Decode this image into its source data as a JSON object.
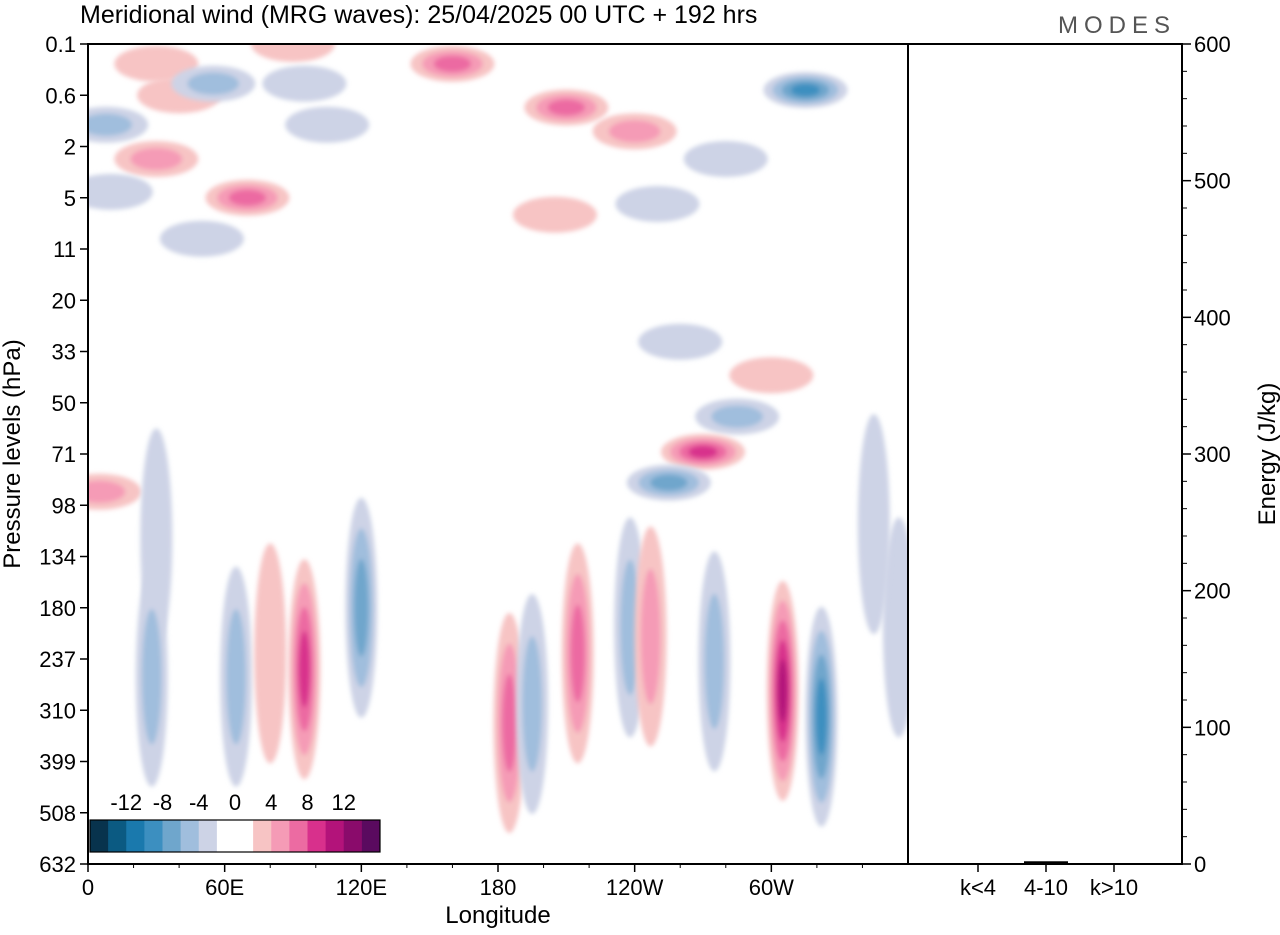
{
  "chart_data": {
    "type": "heatmap",
    "title": "Meridional wind (MRG waves):  25/04/2025  00 UTC  + 192 hrs",
    "logo": "MODES",
    "xlabel": "Longitude",
    "ylabel": "Pressure levels (hPa)",
    "x_ticks": [
      "0",
      "60E",
      "120E",
      "180",
      "120W",
      "60W"
    ],
    "x_tick_values": [
      0,
      60,
      120,
      180,
      240,
      300
    ],
    "x_range": [
      0,
      360
    ],
    "y_ticks": [
      "0.1",
      "0.6",
      "2",
      "5",
      "11",
      "20",
      "33",
      "50",
      "71",
      "98",
      "134",
      "180",
      "237",
      "310",
      "399",
      "508",
      "632"
    ],
    "colorbar": {
      "labels": [
        "-12",
        "-8",
        "-4",
        "0",
        "4",
        "8",
        "12"
      ],
      "levels": [
        -14,
        -12,
        -10,
        -8,
        -6,
        -4,
        -2,
        0,
        2,
        4,
        6,
        8,
        10,
        12,
        14
      ],
      "colors": [
        "#08334d",
        "#0b5a82",
        "#1a79ad",
        "#3c8fc0",
        "#6fa6cc",
        "#a0bedd",
        "#cdd3e6",
        "#ffffff",
        "#ffffff",
        "#f7c4c4",
        "#f59bb6",
        "#ec6ba2",
        "#d8308c",
        "#b3137a",
        "#8a0b6b",
        "#5a0a5f"
      ]
    },
    "energy_panel": {
      "ylabel": "Energy (J/kg)",
      "y_ticks": [
        "0",
        "100",
        "200",
        "300",
        "400",
        "500",
        "600"
      ],
      "ylim": [
        0,
        600
      ],
      "categories": [
        "k<4",
        "4-10",
        "k>10"
      ],
      "values": [
        0.5,
        2,
        0.5
      ]
    },
    "blobs": [
      {
        "lon": 8,
        "lev": 1.2,
        "value": -6
      },
      {
        "lon": 30,
        "lev": 0.2,
        "value": 4
      },
      {
        "lon": 40,
        "lev": 0.6,
        "value": 4
      },
      {
        "lon": 55,
        "lev": 0.4,
        "value": -6
      },
      {
        "lon": 90,
        "lev": 0.1,
        "value": 4
      },
      {
        "lon": 95,
        "lev": 0.4,
        "value": -4
      },
      {
        "lon": 105,
        "lev": 1.2,
        "value": -4
      },
      {
        "lon": 160,
        "lev": 0.2,
        "value": 8
      },
      {
        "lon": 210,
        "lev": 0.8,
        "value": 8
      },
      {
        "lon": 240,
        "lev": 1.4,
        "value": 6
      },
      {
        "lon": 315,
        "lev": 0.5,
        "value": -10
      },
      {
        "lon": 280,
        "lev": 2.5,
        "value": -4
      },
      {
        "lon": 30,
        "lev": 2.5,
        "value": 6
      },
      {
        "lon": 70,
        "lev": 5,
        "value": 8
      },
      {
        "lon": 50,
        "lev": 9.4,
        "value": -4
      },
      {
        "lon": 205,
        "lev": 6.5,
        "value": 4
      },
      {
        "lon": 250,
        "lev": 5.5,
        "value": -4
      },
      {
        "lon": 10,
        "lev": 4.5,
        "value": -4
      },
      {
        "lon": 260,
        "lev": 30,
        "value": -4
      },
      {
        "lon": 285,
        "lev": 55,
        "value": -6
      },
      {
        "lon": 300,
        "lev": 40,
        "value": 4
      },
      {
        "lon": 270,
        "lev": 70,
        "value": 10
      },
      {
        "lon": 255,
        "lev": 85,
        "value": -8
      },
      {
        "lon": 5,
        "lev": 90,
        "value": 6
      },
      {
        "lon": 30,
        "lev": 120,
        "value": -4
      },
      {
        "lon": 28,
        "lev": 260,
        "value": -6
      },
      {
        "lon": 65,
        "lev": 260,
        "value": -6
      },
      {
        "lon": 80,
        "lev": 230,
        "value": 4
      },
      {
        "lon": 95,
        "lev": 250,
        "value": 10
      },
      {
        "lon": 120,
        "lev": 180,
        "value": -8
      },
      {
        "lon": 185,
        "lev": 330,
        "value": 8
      },
      {
        "lon": 195,
        "lev": 300,
        "value": -6
      },
      {
        "lon": 215,
        "lev": 230,
        "value": 8
      },
      {
        "lon": 238,
        "lev": 200,
        "value": -6
      },
      {
        "lon": 247,
        "lev": 210,
        "value": 6
      },
      {
        "lon": 275,
        "lev": 240,
        "value": -6
      },
      {
        "lon": 305,
        "lev": 280,
        "value": 12
      },
      {
        "lon": 322,
        "lev": 320,
        "value": -10
      },
      {
        "lon": 356,
        "lev": 200,
        "value": -4
      },
      {
        "lon": 345,
        "lev": 110,
        "value": -4
      }
    ]
  }
}
